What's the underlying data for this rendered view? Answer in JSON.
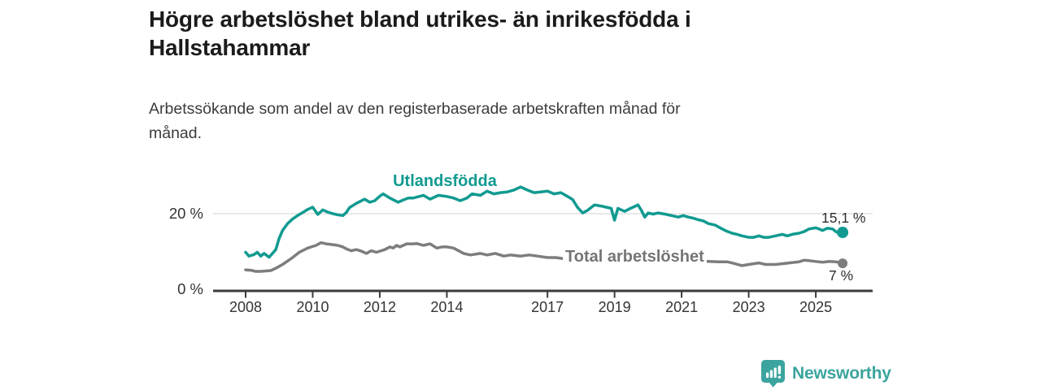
{
  "header": {
    "title": "Högre arbetslöshet bland utrikes- än inrikesfödda i Hallstahammar",
    "subtitle": "Arbetssökande som andel av den registerbaserade arbetskraften månad för månad."
  },
  "chart_data": {
    "type": "line",
    "title": "Högre arbetslöshet bland utrikes- än inrikesfödda i Hallstahammar",
    "subtitle": "Arbetssökande som andel av den registerbaserade arbetskraften månad för månad.",
    "unit": "percent of registered labour force",
    "grid": "single horizontal gridline at 20 %",
    "legend_position": "inline labels on lines",
    "xlim": [
      2007.5,
      2026.2
    ],
    "ylim": [
      0,
      33
    ],
    "x_ticks": [
      {
        "year": 2008,
        "label": "2008"
      },
      {
        "year": 2010,
        "label": "2010"
      },
      {
        "year": 2012,
        "label": "2012"
      },
      {
        "year": 2014,
        "label": "2014"
      },
      {
        "year": 2017,
        "label": "2017"
      },
      {
        "year": 2019,
        "label": "2019"
      },
      {
        "year": 2021,
        "label": "2021"
      },
      {
        "year": 2023,
        "label": "2023"
      },
      {
        "year": 2025,
        "label": "2025"
      }
    ],
    "y_ticks": [
      {
        "value": 0,
        "label": "0 %"
      },
      {
        "value": 20,
        "label": "20 %"
      }
    ],
    "series": [
      {
        "name": "Utlandsfödda",
        "color": "#109a90",
        "end_label": "15,1 %",
        "end_value": 15.1,
        "points": [
          [
            2008.0,
            9.9
          ],
          [
            2008.1,
            8.9
          ],
          [
            2008.25,
            9.3
          ],
          [
            2008.35,
            9.9
          ],
          [
            2008.45,
            8.9
          ],
          [
            2008.55,
            9.6
          ],
          [
            2008.7,
            8.6
          ],
          [
            2008.8,
            9.6
          ],
          [
            2008.9,
            10.6
          ],
          [
            2009.0,
            13.5
          ],
          [
            2009.1,
            15.6
          ],
          [
            2009.25,
            17.4
          ],
          [
            2009.4,
            18.6
          ],
          [
            2009.55,
            19.5
          ],
          [
            2009.7,
            20.3
          ],
          [
            2009.85,
            21.1
          ],
          [
            2010.0,
            21.7
          ],
          [
            2010.15,
            19.8
          ],
          [
            2010.3,
            21.0
          ],
          [
            2010.45,
            20.4
          ],
          [
            2010.6,
            20.0
          ],
          [
            2010.75,
            19.7
          ],
          [
            2010.9,
            19.5
          ],
          [
            2011.0,
            20.3
          ],
          [
            2011.1,
            21.6
          ],
          [
            2011.3,
            22.7
          ],
          [
            2011.55,
            23.8
          ],
          [
            2011.7,
            23.0
          ],
          [
            2011.85,
            23.4
          ],
          [
            2012.0,
            24.6
          ],
          [
            2012.1,
            25.2
          ],
          [
            2012.3,
            24.1
          ],
          [
            2012.55,
            23.0
          ],
          [
            2012.7,
            23.6
          ],
          [
            2012.85,
            24.1
          ],
          [
            2013.0,
            24.1
          ],
          [
            2013.3,
            24.8
          ],
          [
            2013.5,
            23.8
          ],
          [
            2013.75,
            24.8
          ],
          [
            2014.0,
            24.5
          ],
          [
            2014.2,
            24.1
          ],
          [
            2014.4,
            23.4
          ],
          [
            2014.6,
            24.1
          ],
          [
            2014.75,
            25.2
          ],
          [
            2015.0,
            24.8
          ],
          [
            2015.2,
            25.9
          ],
          [
            2015.4,
            25.2
          ],
          [
            2015.6,
            25.5
          ],
          [
            2015.8,
            25.7
          ],
          [
            2016.0,
            26.2
          ],
          [
            2016.2,
            27.0
          ],
          [
            2016.4,
            26.2
          ],
          [
            2016.6,
            25.5
          ],
          [
            2016.8,
            25.7
          ],
          [
            2017.0,
            25.9
          ],
          [
            2017.2,
            25.2
          ],
          [
            2017.4,
            25.5
          ],
          [
            2017.6,
            24.5
          ],
          [
            2017.75,
            23.7
          ],
          [
            2017.9,
            21.6
          ],
          [
            2018.05,
            20.2
          ],
          [
            2018.2,
            20.9
          ],
          [
            2018.4,
            22.3
          ],
          [
            2018.6,
            22.0
          ],
          [
            2018.8,
            21.6
          ],
          [
            2018.9,
            21.4
          ],
          [
            2019.0,
            18.3
          ],
          [
            2019.1,
            21.4
          ],
          [
            2019.3,
            20.6
          ],
          [
            2019.45,
            21.3
          ],
          [
            2019.6,
            21.9
          ],
          [
            2019.7,
            22.3
          ],
          [
            2019.8,
            20.9
          ],
          [
            2019.9,
            19.1
          ],
          [
            2020.0,
            20.2
          ],
          [
            2020.15,
            19.9
          ],
          [
            2020.3,
            20.2
          ],
          [
            2020.5,
            19.9
          ],
          [
            2020.7,
            19.5
          ],
          [
            2020.9,
            19.1
          ],
          [
            2021.05,
            19.5
          ],
          [
            2021.2,
            19.1
          ],
          [
            2021.35,
            18.8
          ],
          [
            2021.5,
            18.4
          ],
          [
            2021.65,
            18.1
          ],
          [
            2021.8,
            17.4
          ],
          [
            2022.0,
            17.0
          ],
          [
            2022.15,
            16.3
          ],
          [
            2022.3,
            15.6
          ],
          [
            2022.5,
            14.9
          ],
          [
            2022.65,
            14.6
          ],
          [
            2022.8,
            14.2
          ],
          [
            2023.0,
            13.8
          ],
          [
            2023.15,
            13.8
          ],
          [
            2023.3,
            14.2
          ],
          [
            2023.45,
            13.8
          ],
          [
            2023.6,
            13.8
          ],
          [
            2023.8,
            14.2
          ],
          [
            2024.0,
            14.6
          ],
          [
            2024.15,
            14.2
          ],
          [
            2024.3,
            14.6
          ],
          [
            2024.5,
            14.9
          ],
          [
            2024.65,
            15.3
          ],
          [
            2024.8,
            16.0
          ],
          [
            2025.0,
            16.3
          ],
          [
            2025.1,
            16.0
          ],
          [
            2025.2,
            15.6
          ],
          [
            2025.35,
            16.2
          ],
          [
            2025.5,
            16.0
          ],
          [
            2025.6,
            15.3
          ],
          [
            2025.7,
            14.9
          ],
          [
            2025.8,
            15.1
          ]
        ]
      },
      {
        "name": "Total arbetslöshet",
        "color": "#7d7d7d",
        "end_label": "7 %",
        "end_value": 7.0,
        "points": [
          [
            2008.0,
            5.3
          ],
          [
            2008.15,
            5.2
          ],
          [
            2008.3,
            4.9
          ],
          [
            2008.45,
            4.9
          ],
          [
            2008.6,
            5.0
          ],
          [
            2008.75,
            5.1
          ],
          [
            2008.9,
            5.7
          ],
          [
            2009.1,
            6.7
          ],
          [
            2009.25,
            7.6
          ],
          [
            2009.4,
            8.5
          ],
          [
            2009.6,
            9.9
          ],
          [
            2009.85,
            11.0
          ],
          [
            2010.1,
            11.7
          ],
          [
            2010.25,
            12.4
          ],
          [
            2010.4,
            12.1
          ],
          [
            2010.6,
            11.9
          ],
          [
            2010.75,
            11.7
          ],
          [
            2010.9,
            11.3
          ],
          [
            2011.0,
            10.8
          ],
          [
            2011.15,
            10.3
          ],
          [
            2011.3,
            10.6
          ],
          [
            2011.45,
            10.2
          ],
          [
            2011.6,
            9.6
          ],
          [
            2011.75,
            10.3
          ],
          [
            2011.9,
            9.9
          ],
          [
            2012.0,
            10.2
          ],
          [
            2012.15,
            10.6
          ],
          [
            2012.3,
            11.3
          ],
          [
            2012.4,
            11.0
          ],
          [
            2012.5,
            11.7
          ],
          [
            2012.6,
            11.3
          ],
          [
            2012.8,
            12.1
          ],
          [
            2013.0,
            12.1
          ],
          [
            2013.1,
            12.2
          ],
          [
            2013.3,
            11.7
          ],
          [
            2013.5,
            12.1
          ],
          [
            2013.7,
            11.0
          ],
          [
            2013.85,
            11.3
          ],
          [
            2014.0,
            11.3
          ],
          [
            2014.2,
            11.0
          ],
          [
            2014.5,
            9.6
          ],
          [
            2014.7,
            9.2
          ],
          [
            2015.0,
            9.6
          ],
          [
            2015.2,
            9.2
          ],
          [
            2015.45,
            9.6
          ],
          [
            2015.7,
            8.9
          ],
          [
            2015.9,
            9.2
          ],
          [
            2016.2,
            8.9
          ],
          [
            2016.45,
            9.2
          ],
          [
            2016.7,
            8.9
          ],
          [
            2017.0,
            8.5
          ],
          [
            2017.25,
            8.5
          ],
          [
            2017.5,
            8.2
          ],
          [
            2017.8,
            8.1
          ],
          [
            2018.1,
            8.0
          ],
          [
            2018.5,
            7.9
          ],
          [
            2018.9,
            7.8
          ],
          [
            2019.3,
            7.7
          ],
          [
            2019.7,
            7.6
          ],
          [
            2020.0,
            7.8
          ],
          [
            2020.3,
            8.1
          ],
          [
            2020.6,
            8.0
          ],
          [
            2021.0,
            7.8
          ],
          [
            2021.4,
            7.6
          ],
          [
            2021.8,
            7.5
          ],
          [
            2022.1,
            7.4
          ],
          [
            2022.35,
            7.4
          ],
          [
            2022.5,
            7.1
          ],
          [
            2022.8,
            6.4
          ],
          [
            2023.0,
            6.7
          ],
          [
            2023.3,
            7.1
          ],
          [
            2023.5,
            6.7
          ],
          [
            2023.8,
            6.7
          ],
          [
            2024.0,
            6.9
          ],
          [
            2024.2,
            7.1
          ],
          [
            2024.5,
            7.4
          ],
          [
            2024.65,
            7.8
          ],
          [
            2024.8,
            7.7
          ],
          [
            2025.0,
            7.5
          ],
          [
            2025.2,
            7.3
          ],
          [
            2025.4,
            7.5
          ],
          [
            2025.6,
            7.4
          ],
          [
            2025.8,
            7.0
          ]
        ]
      }
    ],
    "colors": {
      "axis": "#3b3b3b",
      "gridline": "#d9d9d9",
      "tick_text": "#333333",
      "value_text": "#2e2e2e"
    }
  },
  "footer": {
    "brand": "Newsworthy",
    "logo_color": "#3ba49e"
  }
}
